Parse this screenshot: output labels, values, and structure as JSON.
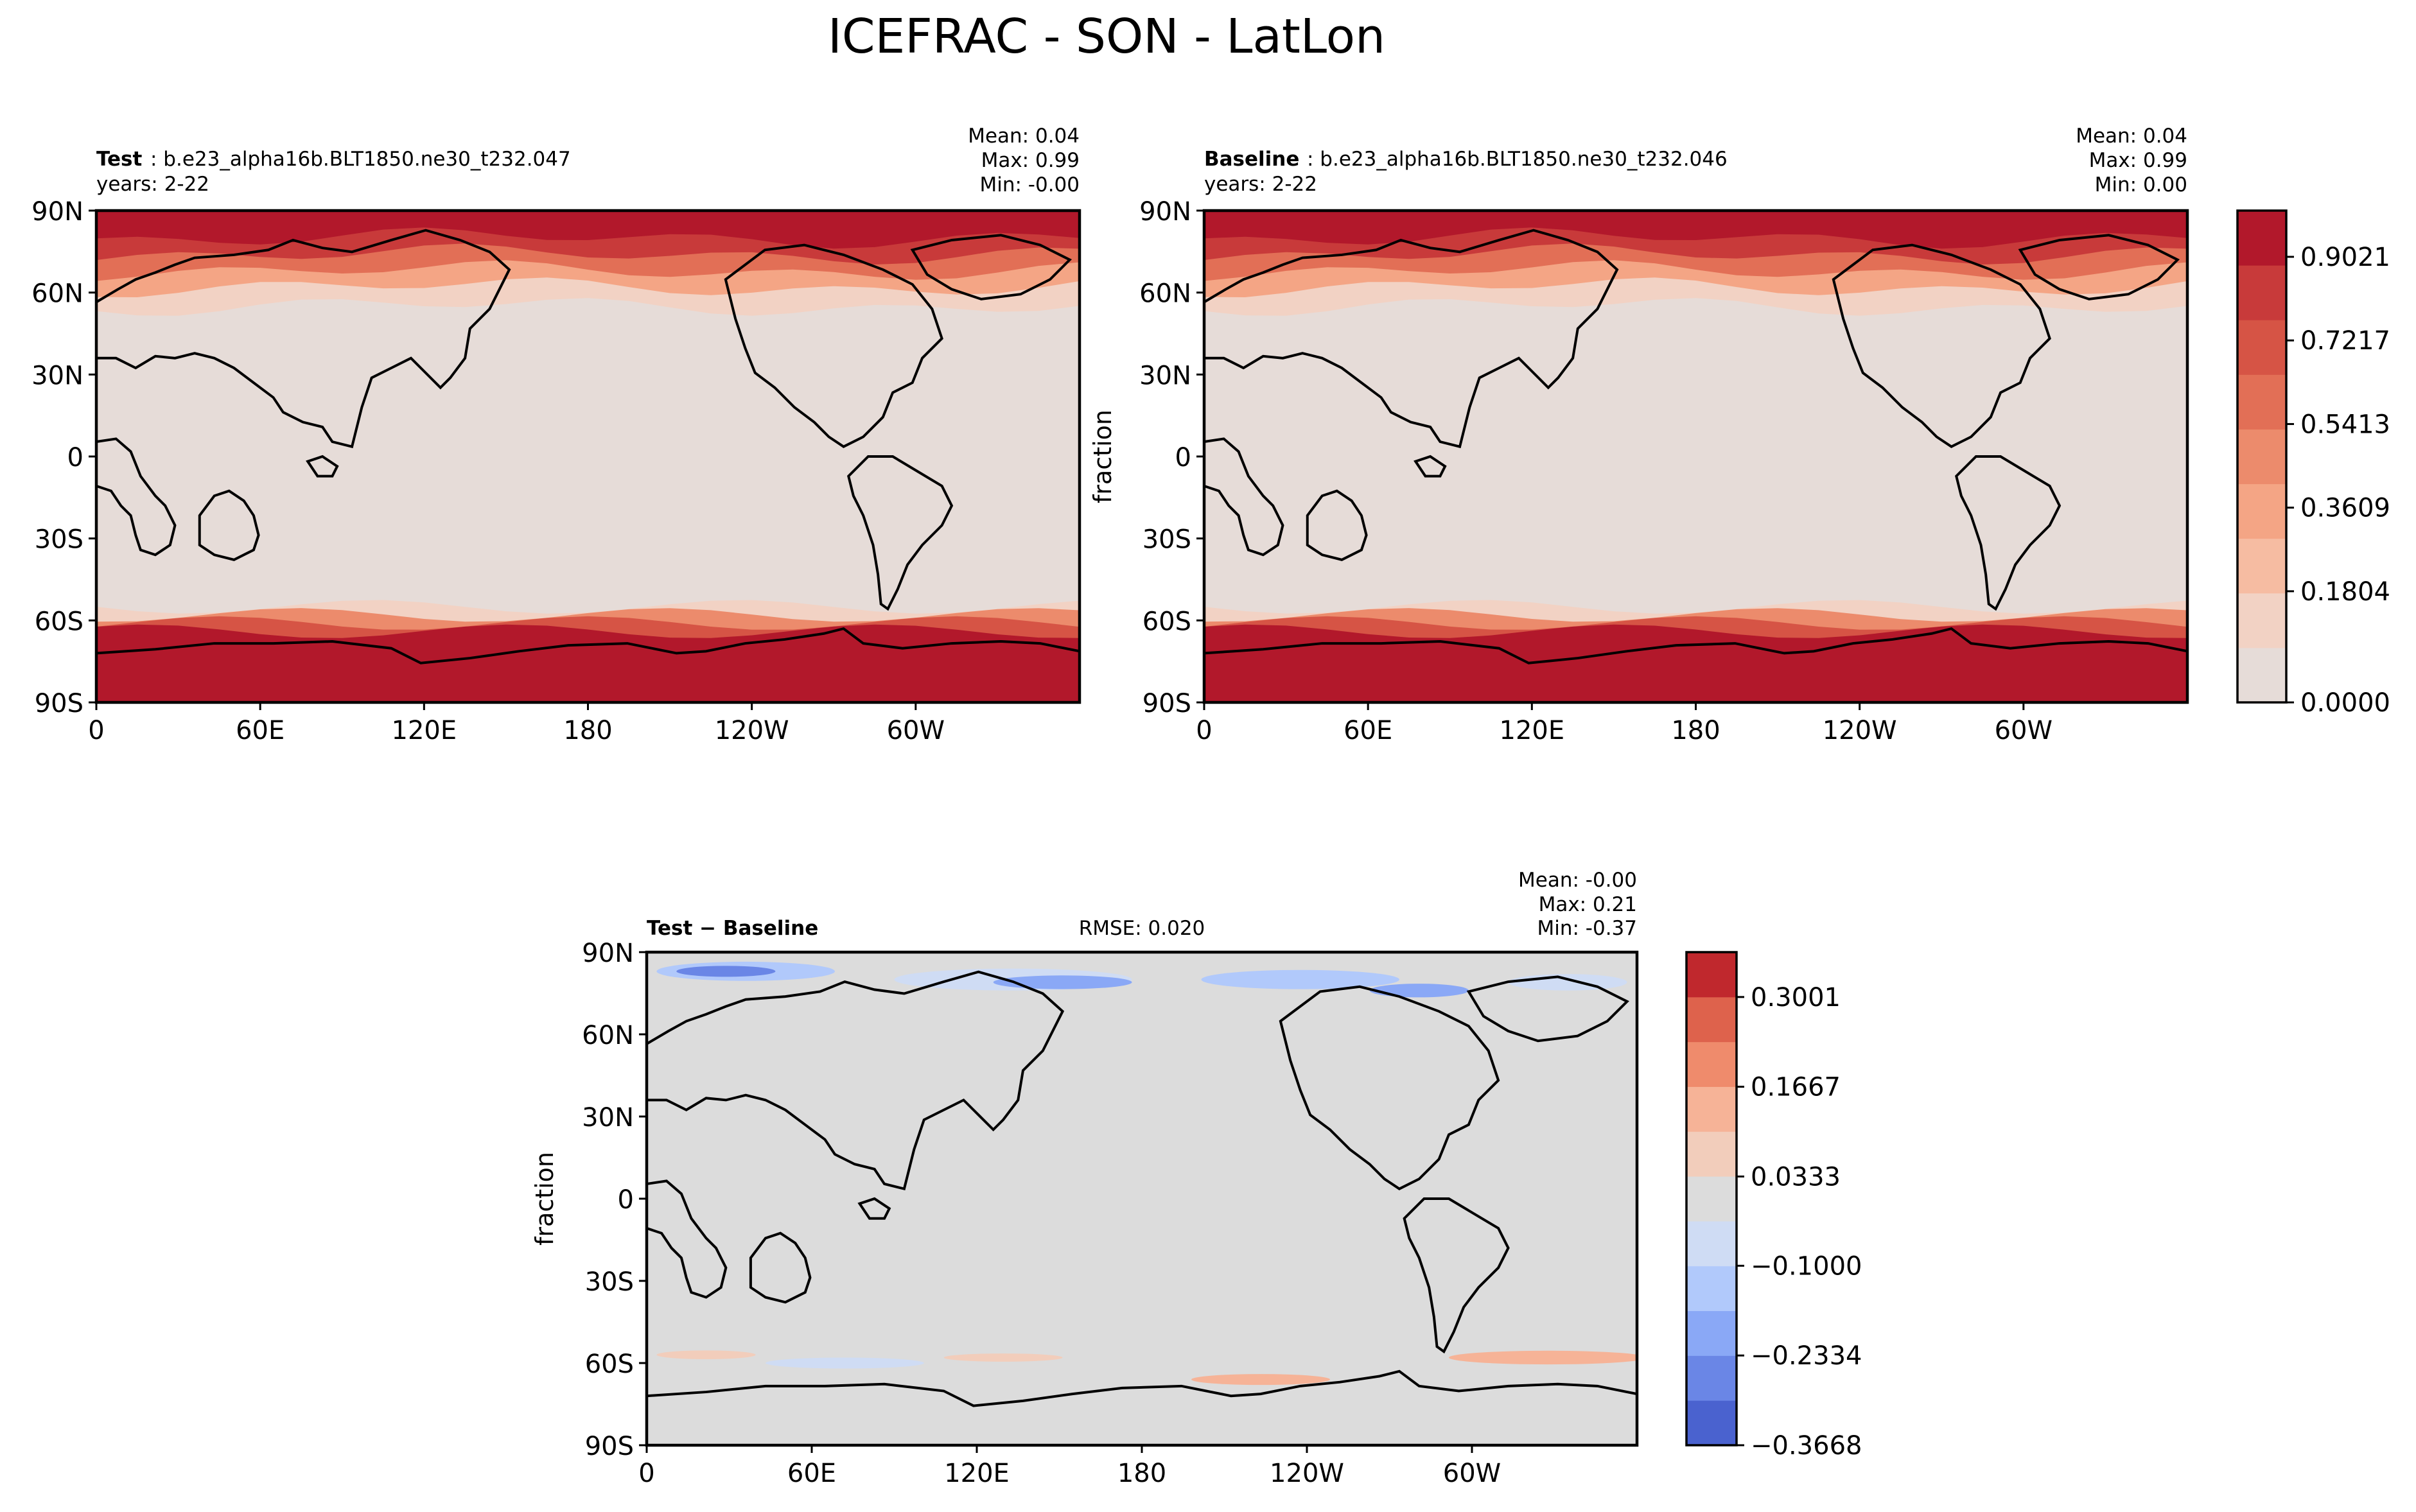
{
  "suptitle": "ICEFRAC - SON - LatLon",
  "colors": {
    "land_line": "#000000",
    "test_cmap": [
      "#e6dcd8",
      "#f2d2c4",
      "#f6bca2",
      "#f4a585",
      "#ec8b6c",
      "#e26f56",
      "#d65445",
      "#c83a3a",
      "#b2182b"
    ],
    "diff_cmap": [
      "#4a62cf",
      "#6a86e6",
      "#8aa8f6",
      "#b1c9fb",
      "#cfdcf4",
      "#dcdcdc",
      "#f2cdbb",
      "#f6b397",
      "#ef8b6c",
      "#de624c",
      "#c0282d"
    ]
  },
  "panels": {
    "test": {
      "label_bold": "Test",
      "label_rest": ": b.e23_alpha16b.BLT1850.ne30_t232.047",
      "years": "years: 2-22",
      "mean": "Mean:  0.04",
      "max": "Max:  0.99",
      "min": "Min: -0.00"
    },
    "baseline": {
      "label_bold": "Baseline",
      "label_rest": ": b.e23_alpha16b.BLT1850.ne30_t232.046",
      "years": "years: 2-22",
      "mean": "Mean:  0.04",
      "max": "Max:  0.99",
      "min": "Min:  0.00",
      "ylabel": "fraction"
    },
    "diff": {
      "label": "Test − Baseline",
      "rmse": "RMSE: 0.020",
      "mean": "Mean: -0.00",
      "max": "Max:  0.21",
      "min": "Min: -0.37",
      "ylabel": "fraction"
    }
  },
  "axes": {
    "lat_ticks": [
      "90N",
      "60N",
      "30N",
      "0",
      "30S",
      "60S",
      "90S"
    ],
    "lon_ticks": [
      "0",
      "60E",
      "120E",
      "180",
      "120W",
      "60W"
    ]
  },
  "colorbars": {
    "main": [
      "0.9021",
      "0.7217",
      "0.5413",
      "0.3609",
      "0.1804",
      "0.0000"
    ],
    "diff": [
      "0.3001",
      "0.1667",
      "0.0333",
      "−0.1000",
      "−0.2334",
      "−0.3668"
    ]
  },
  "chart_data": [
    {
      "type": "heatmap",
      "title": "Test",
      "variable": "ICEFRAC",
      "units": "fraction",
      "x": "longitude",
      "y": "latitude",
      "xticks": [
        "0",
        "60E",
        "120E",
        "180",
        "120W",
        "60W"
      ],
      "yticks": [
        "90N",
        "60N",
        "30N",
        "0",
        "30S",
        "60S",
        "90S"
      ],
      "stats": {
        "mean": 0.04,
        "max": 0.99,
        "min": -0.0
      },
      "colorbar_ticks": [
        0.0,
        0.1804,
        0.3609,
        0.5413,
        0.7217,
        0.9021
      ]
    },
    {
      "type": "heatmap",
      "title": "Baseline",
      "variable": "ICEFRAC",
      "units": "fraction",
      "x": "longitude",
      "y": "latitude",
      "xticks": [
        "0",
        "60E",
        "120E",
        "180",
        "120W",
        "60W"
      ],
      "yticks": [
        "90N",
        "60N",
        "30N",
        "0",
        "30S",
        "60S",
        "90S"
      ],
      "stats": {
        "mean": 0.04,
        "max": 0.99,
        "min": 0.0
      },
      "colorbar_ticks": [
        0.0,
        0.1804,
        0.3609,
        0.5413,
        0.7217,
        0.9021
      ]
    },
    {
      "type": "heatmap",
      "title": "Test - Baseline",
      "variable": "ICEFRAC",
      "units": "fraction",
      "x": "longitude",
      "y": "latitude",
      "xticks": [
        "0",
        "60E",
        "120E",
        "180",
        "120W",
        "60W"
      ],
      "yticks": [
        "90N",
        "60N",
        "30N",
        "0",
        "30S",
        "60S",
        "90S"
      ],
      "stats": {
        "mean": -0.0,
        "max": 0.21,
        "min": -0.37,
        "rmse": 0.02
      },
      "colorbar_ticks": [
        -0.3668,
        -0.2334,
        -0.1,
        0.0333,
        0.1667,
        0.3001
      ]
    }
  ]
}
